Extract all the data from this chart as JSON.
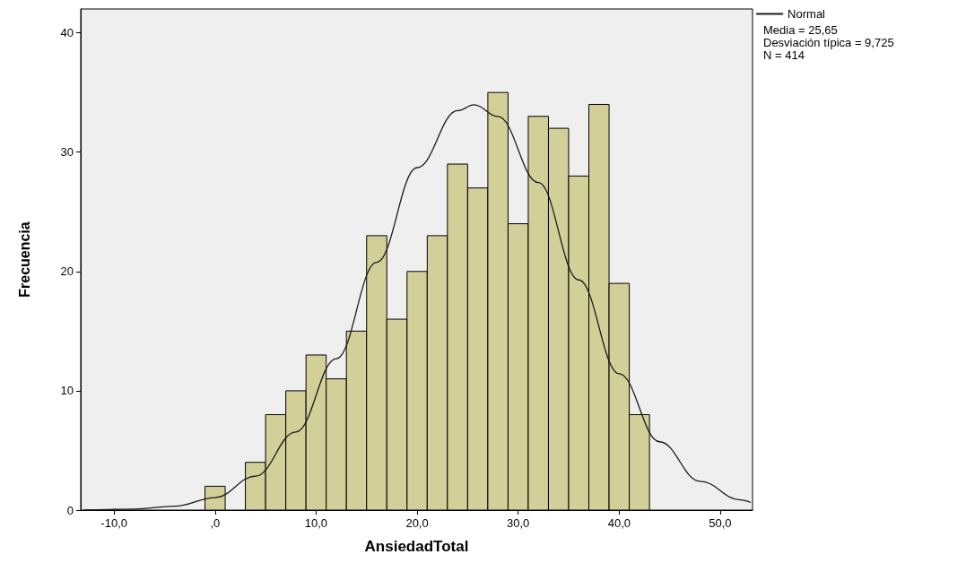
{
  "chart_data": {
    "type": "histogram",
    "xlabel": "AnsiedadTotal",
    "ylabel": "Frecuencia",
    "bins": [
      -1,
      1,
      3,
      5,
      7,
      9,
      11,
      13,
      15,
      17,
      19,
      21,
      23,
      25,
      27,
      29,
      31,
      33,
      35,
      37,
      39,
      41,
      43
    ],
    "values": [
      2,
      0,
      4,
      8,
      10,
      13,
      11,
      15,
      23,
      16,
      20,
      23,
      29,
      27,
      35,
      24,
      33,
      32,
      28,
      34,
      19,
      8
    ],
    "color": "#d3cf98",
    "series": [
      {
        "type": "line",
        "name": "Normal",
        "color": "#1a1a1a",
        "x": [
          -13,
          -12,
          -8,
          -4,
          0,
          4,
          8,
          12,
          16,
          20,
          24,
          25.65,
          28,
          32,
          36,
          40,
          44,
          48,
          52,
          53
        ],
        "values": [
          0.01,
          0.02,
          0.09,
          0.33,
          1.05,
          2.85,
          6.55,
          12.69,
          20.77,
          28.7,
          33.48,
          33.97,
          32.99,
          27.45,
          19.29,
          11.43,
          5.73,
          2.42,
          0.86,
          0.65
        ]
      }
    ],
    "xlim": [
      -13.3,
      53.2
    ],
    "xticks": [
      {
        "value": -10,
        "label": "-10,0"
      },
      {
        "value": 0,
        "label": ",0"
      },
      {
        "value": 10,
        "label": "10,0"
      },
      {
        "value": 20,
        "label": "20,0"
      },
      {
        "value": 30,
        "label": "30,0"
      },
      {
        "value": 40,
        "label": "40,0"
      },
      {
        "value": 50,
        "label": "50,0"
      }
    ],
    "ylim": [
      0,
      42
    ],
    "yticks": [
      0,
      10,
      20,
      30,
      40
    ],
    "grid": false,
    "legend": "top right",
    "marker": "none",
    "line_style": "solid",
    "annotations": [
      "Media = 25,65",
      "Desviación típica = 9,725",
      "N = 414"
    ]
  }
}
